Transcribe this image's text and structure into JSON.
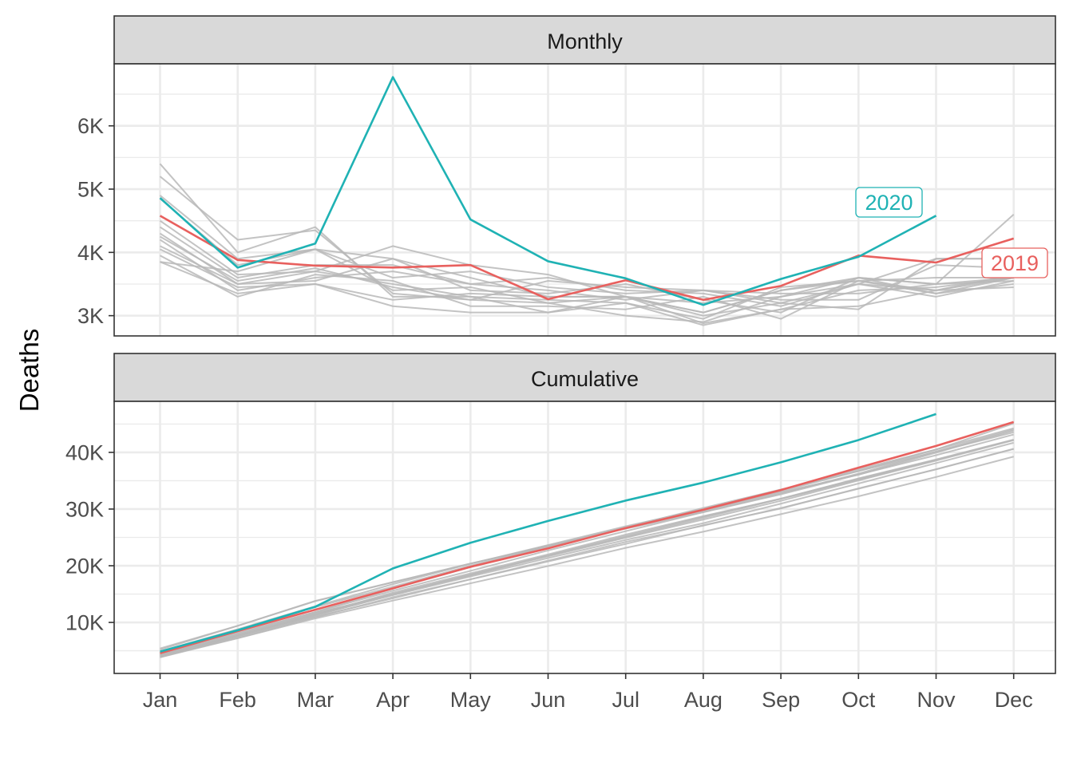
{
  "chart_data": {
    "type": "line",
    "ylabel": "Deaths",
    "xlabel": "",
    "categories": [
      "Jan",
      "Feb",
      "Mar",
      "Apr",
      "May",
      "Jun",
      "Jul",
      "Aug",
      "Sep",
      "Oct",
      "Nov",
      "Dec"
    ],
    "colors": {
      "highlight_2020": "#1fb2b4",
      "highlight_2019": "#e8605e",
      "background_years": "#b8b8b8"
    },
    "panels": [
      {
        "title": "Monthly",
        "ylim": [
          2680,
          6980
        ],
        "yticks": [
          3000,
          4000,
          5000,
          6000
        ],
        "ytick_labels": [
          "3K",
          "4K",
          "5K",
          "6K"
        ],
        "background_series": [
          [
            5400,
            4000,
            4400,
            3300,
            3300,
            3050,
            3300,
            3000,
            3200,
            3100,
            3900,
            3900
          ],
          [
            5200,
            4200,
            4350,
            3350,
            3250,
            3200,
            3000,
            2900,
            3300,
            3500,
            3900,
            3900
          ],
          [
            4900,
            3900,
            4050,
            3900,
            3600,
            3300,
            3300,
            3050,
            3400,
            3600,
            3500,
            4600
          ],
          [
            4850,
            3800,
            4050,
            3600,
            3700,
            3450,
            3350,
            3400,
            3250,
            3250,
            3800,
            3750
          ],
          [
            4500,
            3650,
            3700,
            4100,
            3800,
            3650,
            3300,
            3050,
            3400,
            3550,
            3400,
            3450
          ],
          [
            4400,
            3600,
            3800,
            3800,
            3500,
            3600,
            3400,
            3350,
            3150,
            3500,
            3400,
            3650
          ],
          [
            4300,
            3500,
            3550,
            3900,
            3400,
            3350,
            3500,
            3250,
            3050,
            3600,
            3350,
            3500
          ],
          [
            4250,
            3550,
            3750,
            3450,
            3250,
            3550,
            3450,
            3400,
            3200,
            3500,
            3300,
            3550
          ],
          [
            4200,
            3400,
            3600,
            3700,
            3500,
            3400,
            3250,
            3400,
            3350,
            3350,
            3500,
            3550
          ],
          [
            4100,
            3500,
            3700,
            3500,
            3300,
            3250,
            3200,
            2950,
            3450,
            3550,
            3600,
            3600
          ],
          [
            4050,
            3450,
            3500,
            3250,
            3350,
            3300,
            3300,
            2880,
            3100,
            3400,
            3450,
            3600
          ],
          [
            3950,
            3300,
            3650,
            3550,
            3150,
            3150,
            3100,
            3300,
            2950,
            3550,
            3350,
            3600
          ],
          [
            3850,
            3700,
            4050,
            3400,
            3450,
            3200,
            3300,
            3200,
            3300,
            3600,
            3500,
            3600
          ],
          [
            3850,
            3350,
            3500,
            3150,
            3050,
            3050,
            3200,
            2850,
            3100,
            3150,
            3400,
            3600
          ]
        ],
        "series_2019": [
          4580,
          3880,
          3790,
          3760,
          3800,
          3260,
          3560,
          3250,
          3470,
          3950,
          3840,
          4220
        ],
        "series_2020": [
          4860,
          3760,
          4140,
          6770,
          4520,
          3860,
          3590,
          3170,
          3580,
          3930,
          4580
        ],
        "label_2019": "2019",
        "label_2020": "2020"
      },
      {
        "title": "Cumulative",
        "ylim": [
          1000,
          49000
        ],
        "yticks": [
          10000,
          20000,
          30000,
          40000
        ],
        "ytick_labels": [
          "10K",
          "20K",
          "30K",
          "40K"
        ],
        "background_series": [
          [
            5400,
            9400,
            13800,
            17100,
            20400,
            23450,
            26750,
            29750,
            32950,
            36050,
            39950,
            43850
          ],
          [
            5200,
            9400,
            13750,
            17100,
            20350,
            23550,
            26550,
            29450,
            32750,
            36250,
            40150,
            44050
          ],
          [
            4900,
            8800,
            12850,
            16750,
            20350,
            23650,
            26950,
            30000,
            33400,
            37000,
            40500,
            45100
          ],
          [
            4850,
            8650,
            12700,
            16300,
            20000,
            23450,
            26800,
            30200,
            33450,
            36700,
            40500,
            44250
          ],
          [
            4500,
            8150,
            11850,
            15950,
            19750,
            23400,
            26700,
            29750,
            33150,
            36700,
            40100,
            43550
          ],
          [
            4400,
            8000,
            11800,
            15600,
            19100,
            22700,
            26100,
            29450,
            32600,
            36100,
            39500,
            43150
          ],
          [
            4300,
            7800,
            11350,
            15250,
            18650,
            22000,
            25500,
            28750,
            31800,
            35400,
            38750,
            42250
          ],
          [
            4250,
            7800,
            11550,
            15000,
            18250,
            21800,
            25250,
            28650,
            31850,
            35350,
            38650,
            42200
          ],
          [
            4200,
            7600,
            11200,
            14900,
            18400,
            21800,
            25050,
            28450,
            31800,
            35150,
            38650,
            42200
          ],
          [
            4100,
            7600,
            11300,
            14800,
            18100,
            21350,
            24550,
            27500,
            30950,
            34500,
            38100,
            41700
          ],
          [
            4050,
            7500,
            11000,
            14250,
            17600,
            20900,
            24200,
            27080,
            30180,
            33580,
            37030,
            40630
          ],
          [
            3950,
            7250,
            10900,
            14450,
            17600,
            20750,
            23850,
            27150,
            30100,
            33650,
            37000,
            40600
          ],
          [
            3850,
            7550,
            11600,
            15000,
            18450,
            21650,
            24950,
            28150,
            31450,
            35050,
            38550,
            42150
          ],
          [
            3850,
            7200,
            10700,
            13850,
            16900,
            19950,
            23150,
            26000,
            29100,
            32250,
            35650,
            39250
          ]
        ],
        "series_2019": [
          4580,
          8460,
          12250,
          16010,
          19810,
          23070,
          26630,
          29880,
          33350,
          37300,
          41140,
          45360
        ],
        "series_2020": [
          4860,
          8620,
          12760,
          19530,
          24050,
          27910,
          31500,
          34670,
          38250,
          42180,
          46760
        ]
      }
    ]
  }
}
